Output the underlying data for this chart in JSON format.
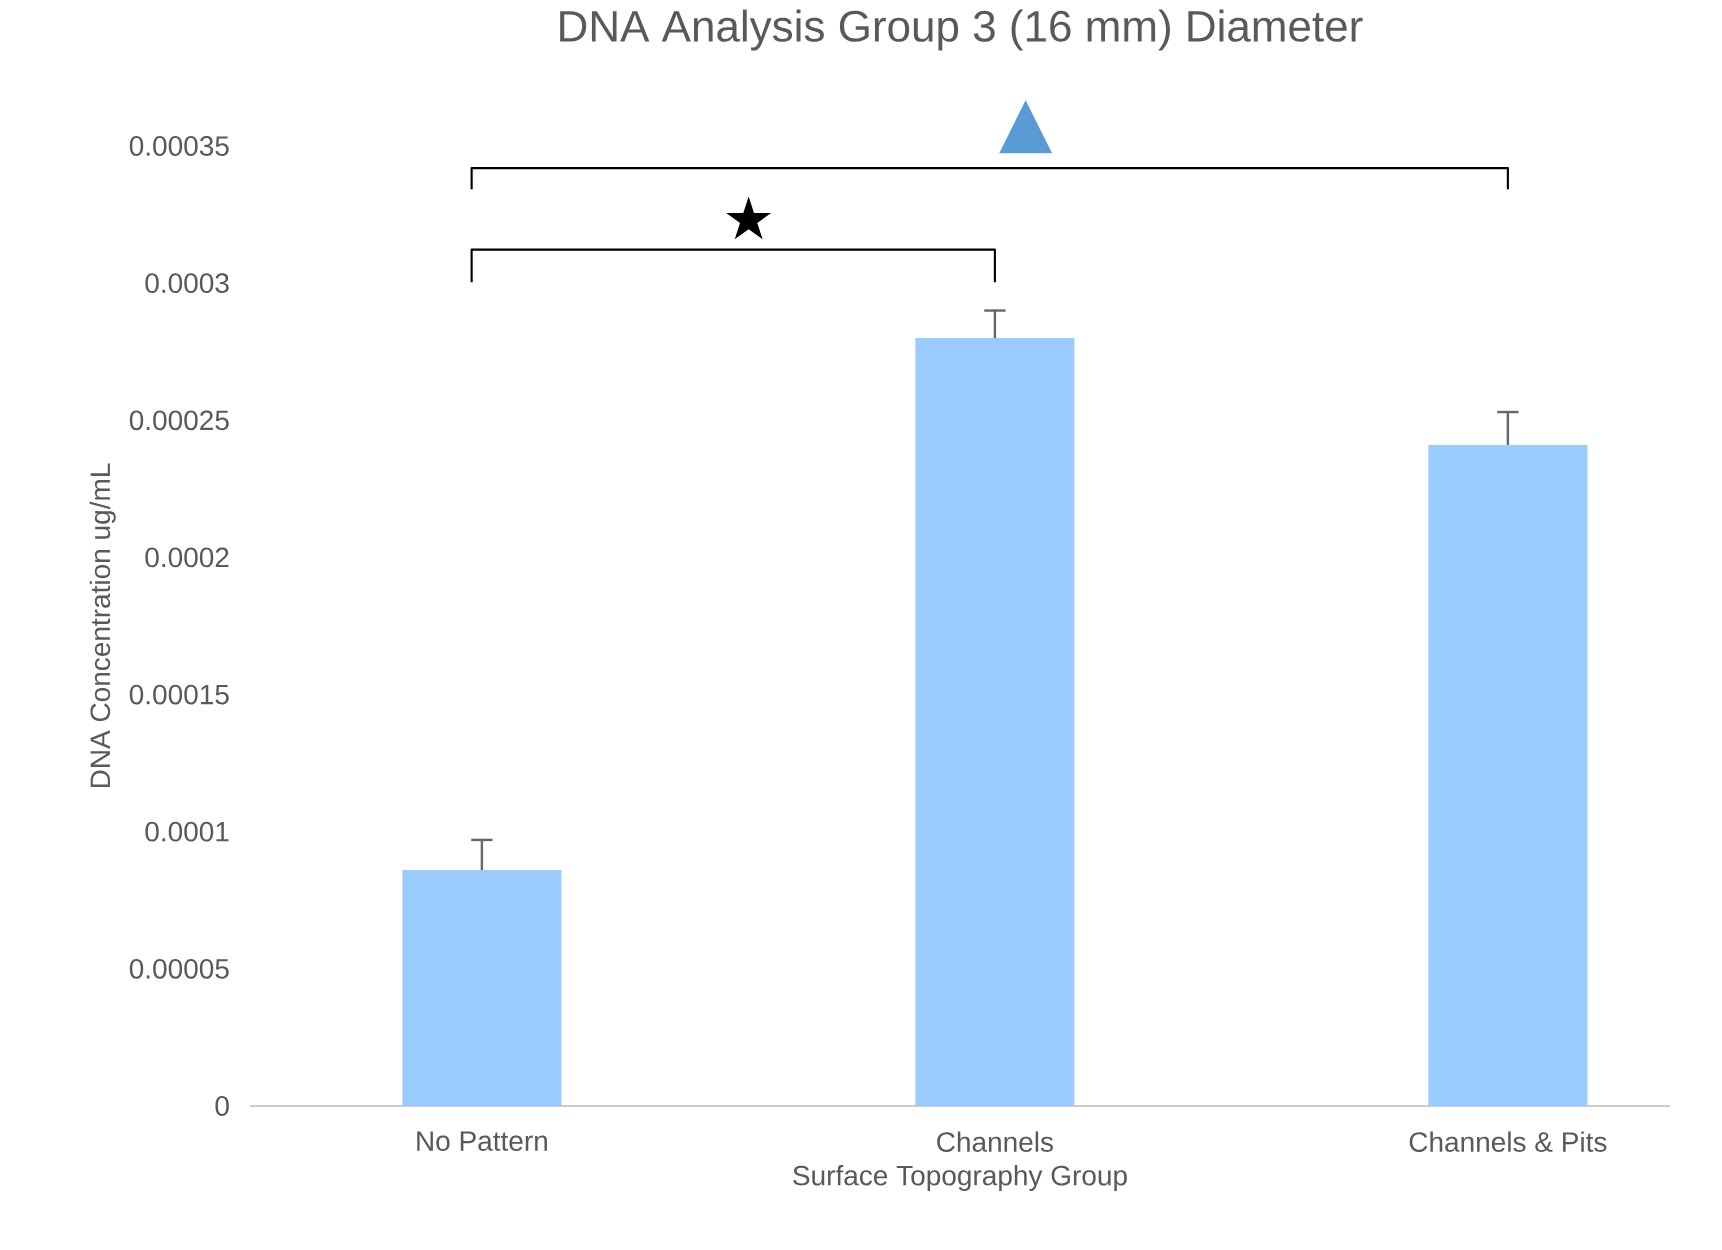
{
  "chart_data": {
    "type": "bar",
    "title": "DNA Analysis Group 3 (16 mm) Diameter",
    "xlabel": "Surface Topography Group",
    "ylabel": "DNA Concentration ug/mL",
    "categories": [
      "No Pattern",
      "Channels",
      "Channels & Pits"
    ],
    "values": [
      8.6e-05,
      0.00028,
      0.000241
    ],
    "errors": [
      [
        8.6e-05,
        9.7e-05
      ],
      [
        0.00028,
        0.00029
      ],
      [
        0.000241,
        0.000253
      ]
    ],
    "color": "#99cbfd",
    "ylim": [
      0,
      0.00035
    ],
    "yticks": [
      {
        "value": 0,
        "label": "0"
      },
      {
        "value": 5e-05,
        "label": "0.00005"
      },
      {
        "value": 0.0001,
        "label": "0.0001"
      },
      {
        "value": 0.00015,
        "label": "0.00015"
      },
      {
        "value": 0.0002,
        "label": "0.0002"
      },
      {
        "value": 0.00025,
        "label": "0.00025"
      },
      {
        "value": 0.0003,
        "label": "0.0003"
      },
      {
        "value": 0.00035,
        "label": "0.00035"
      }
    ],
    "annotations": [
      "★",
      "▲"
    ]
  }
}
